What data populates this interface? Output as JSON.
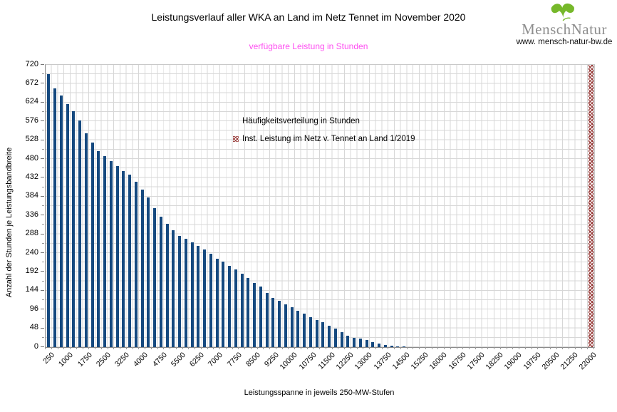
{
  "logo": {
    "brand_part1": "Mensch",
    "brand_part2": "Natur",
    "website": "www. mensch-natur-bw.de",
    "leaf_icon_color": "#76b82a",
    "brand_color": "#8e8e8e"
  },
  "chart_data": {
    "type": "bar",
    "title": "Leistungsverlauf aller WKA an Land im Netz Tennet im November 2020",
    "subtitle": "verfügbare Leistung in Stunden",
    "subtitle_color": "#fe4ff1",
    "xlabel": "Leistungsspanne in jeweils 250-MW-Stufen",
    "ylabel": "Anzahl der Stunden je Leistungsbandbreite",
    "ylim": [
      0,
      720
    ],
    "y_tick_step": 48,
    "y_minor_step": 24,
    "grid": true,
    "grid_color": "#d7d7d7",
    "legend_position": "inside upper-middle",
    "categories": [
      250,
      500,
      750,
      1000,
      1250,
      1500,
      1750,
      2000,
      2250,
      2500,
      2750,
      3000,
      3250,
      3500,
      3750,
      4000,
      4250,
      4500,
      4750,
      5000,
      5250,
      5500,
      5750,
      6000,
      6250,
      6500,
      6750,
      7000,
      7250,
      7500,
      7750,
      8000,
      8250,
      8500,
      8750,
      9000,
      9250,
      9500,
      9750,
      10000,
      10250,
      10500,
      10750,
      11000,
      11250,
      11500,
      11750,
      12000,
      12250,
      12500,
      12750,
      13000,
      13250,
      13500,
      13750,
      14000,
      14250,
      14500,
      14750,
      15000,
      15250,
      15500,
      15750,
      16000,
      16250,
      16500,
      16750,
      17000,
      17250,
      17500,
      17750,
      18000,
      18250,
      18500,
      18750,
      19000,
      19250,
      19500,
      19750,
      20000,
      20250,
      20500,
      20750,
      21000,
      21250,
      21500,
      21750,
      22000
    ],
    "x_tick_labels": [
      "250",
      "1000",
      "1750",
      "2500",
      "3250",
      "4000",
      "4750",
      "5500",
      "6250",
      "7000",
      "7750",
      "8500",
      "9250",
      "10000",
      "10750",
      "11500",
      "12250",
      "13000",
      "13750",
      "14500",
      "15250",
      "16000",
      "16750",
      "17500",
      "18250",
      "19000",
      "19750",
      "20500",
      "21250",
      "22000"
    ],
    "series": [
      {
        "name": "Häufigkeitsverteilung in Stunden",
        "type": "bar",
        "color": "#15497f",
        "values": [
          696,
          660,
          641,
          620,
          602,
          578,
          546,
          522,
          500,
          488,
          474,
          461,
          450,
          440,
          421,
          401,
          382,
          354,
          333,
          314,
          299,
          283,
          276,
          268,
          259,
          250,
          238,
          226,
          219,
          208,
          198,
          188,
          176,
          164,
          154,
          138,
          126,
          119,
          110,
          101,
          92,
          85,
          76,
          69,
          64,
          55,
          47,
          38,
          29,
          24,
          21,
          18,
          13,
          10,
          6,
          4,
          2,
          1,
          0,
          0,
          0,
          0,
          0,
          0,
          0,
          0,
          0,
          0,
          0,
          0,
          0,
          0,
          0,
          0,
          0,
          0,
          0,
          0,
          0,
          0,
          0,
          0,
          0,
          0,
          0,
          0,
          0,
          0
        ]
      },
      {
        "name": "Inst. Leistung im Netz v. Tennet an Land 1/2019",
        "type": "full-height-marker",
        "color": "#953735",
        "pattern": "crosshatch",
        "at_category": 22000,
        "height_value": 720
      }
    ]
  }
}
